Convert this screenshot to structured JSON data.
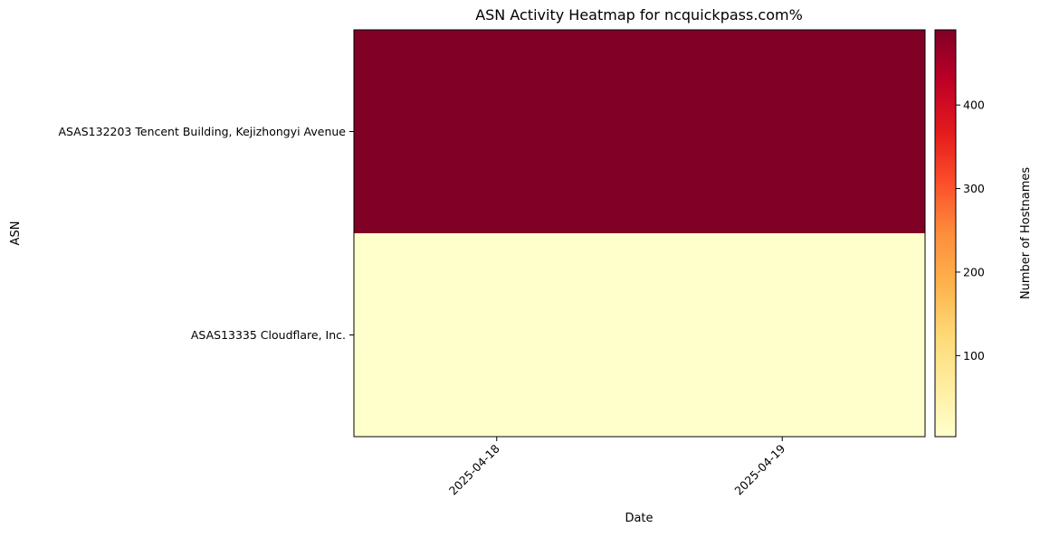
{
  "chart_data": {
    "type": "heatmap",
    "title": "ASN Activity Heatmap for ncquickpass.com%",
    "xlabel": "Date",
    "ylabel": "ASN",
    "x": [
      "2025-04-18",
      "2025-04-19"
    ],
    "y": [
      "ASAS132203 Tencent Building, Kejizhongyi Avenue",
      "ASAS13335 Cloudflare, Inc."
    ],
    "values": [
      [
        490,
        490
      ],
      [
        3,
        3
      ]
    ],
    "colormap": "YlOrRd",
    "colorbar": {
      "label": "Number of Hostnames",
      "range": [
        3,
        490
      ],
      "ticks": [
        100,
        200,
        300,
        400
      ]
    },
    "x_tick_rotation": 45,
    "grid": false
  }
}
